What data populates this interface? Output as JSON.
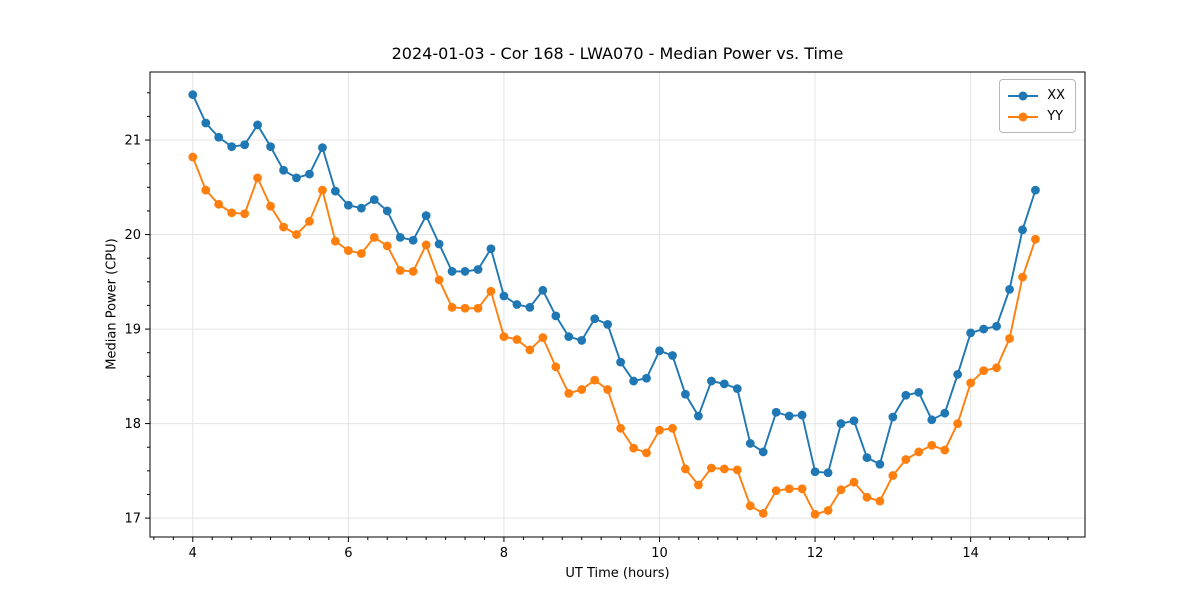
{
  "figure": {
    "title": "2024-01-03 - Cor 168 - LWA070 - Median Power vs. Time",
    "background": "#ffffff"
  },
  "chart_data": {
    "type": "line",
    "title": "2024-01-03 - Cor 168 - LWA070 - Median Power vs. Time",
    "xlabel": "UT Time (hours)",
    "ylabel": "Median Power (CPU)",
    "xlim": [
      3.45,
      15.47
    ],
    "ylim": [
      16.8,
      21.72
    ],
    "x_major_ticks": [
      4,
      6,
      8,
      10,
      12,
      14
    ],
    "y_major_ticks": [
      17,
      18,
      19,
      20,
      21
    ],
    "minor_tick_step": 0.25,
    "grid": true,
    "grid_color": "#e4e4e4",
    "spine_color": "#000000",
    "legend": {
      "position": "upper right",
      "entries": [
        "XX",
        "YY"
      ]
    },
    "x": [
      4.0,
      4.167,
      4.333,
      4.5,
      4.667,
      4.833,
      5.0,
      5.167,
      5.333,
      5.5,
      5.667,
      5.833,
      6.0,
      6.167,
      6.333,
      6.5,
      6.667,
      6.833,
      7.0,
      7.167,
      7.333,
      7.5,
      7.667,
      7.833,
      8.0,
      8.167,
      8.333,
      8.5,
      8.667,
      8.833,
      9.0,
      9.167,
      9.333,
      9.5,
      9.667,
      9.833,
      10.0,
      10.167,
      10.333,
      10.5,
      10.667,
      10.833,
      11.0,
      11.167,
      11.333,
      11.5,
      11.667,
      11.833,
      12.0,
      12.167,
      12.333,
      12.5,
      12.667,
      12.833,
      13.0,
      13.167,
      13.333,
      13.5,
      13.667,
      13.833,
      14.0,
      14.167,
      14.333,
      14.5,
      14.667,
      14.833
    ],
    "series": [
      {
        "name": "XX",
        "color": "#1f77b4",
        "values": [
          21.48,
          21.18,
          21.03,
          20.93,
          20.95,
          21.16,
          20.93,
          20.68,
          20.6,
          20.64,
          20.92,
          20.46,
          20.31,
          20.28,
          20.37,
          20.25,
          19.97,
          19.94,
          20.2,
          19.9,
          19.61,
          19.61,
          19.63,
          19.85,
          19.35,
          19.26,
          19.23,
          19.41,
          19.14,
          18.92,
          18.88,
          19.11,
          19.05,
          18.65,
          18.45,
          18.48,
          18.77,
          18.72,
          18.31,
          18.08,
          18.45,
          18.42,
          18.37,
          17.79,
          17.7,
          18.12,
          18.08,
          18.09,
          17.49,
          17.48,
          18.0,
          18.03,
          17.64,
          17.57,
          18.07,
          18.3,
          18.33,
          18.04,
          18.11,
          18.52,
          18.96,
          19.0,
          19.03,
          19.42,
          20.05,
          20.47
        ]
      },
      {
        "name": "YY",
        "color": "#ff7f0e",
        "values": [
          20.82,
          20.47,
          20.32,
          20.23,
          20.22,
          20.6,
          20.3,
          20.08,
          20.0,
          20.14,
          20.47,
          19.93,
          19.83,
          19.8,
          19.97,
          19.88,
          19.62,
          19.61,
          19.89,
          19.52,
          19.23,
          19.22,
          19.22,
          19.4,
          18.92,
          18.89,
          18.78,
          18.91,
          18.6,
          18.32,
          18.36,
          18.46,
          18.36,
          17.95,
          17.74,
          17.69,
          17.93,
          17.95,
          17.52,
          17.35,
          17.53,
          17.52,
          17.51,
          17.13,
          17.05,
          17.29,
          17.31,
          17.31,
          17.04,
          17.08,
          17.3,
          17.38,
          17.22,
          17.18,
          17.45,
          17.62,
          17.7,
          17.77,
          17.72,
          18.0,
          18.43,
          18.56,
          18.59,
          18.9,
          19.55,
          19.95
        ]
      }
    ]
  }
}
